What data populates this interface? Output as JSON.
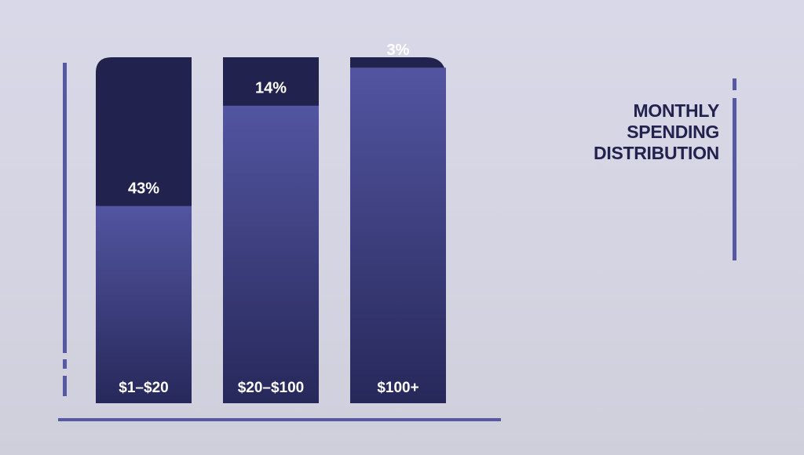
{
  "chart_data": {
    "type": "bar",
    "title": "MONTHLY SPENDING DISTRIBUTION",
    "title_lines": [
      "MONTHLY",
      "SPENDING",
      "DISTRIBUTION"
    ],
    "categories": [
      "$1–$20",
      "$20–$100",
      "$100+"
    ],
    "values": [
      43,
      14,
      3
    ],
    "value_labels": [
      "43%",
      "14%",
      "3%"
    ],
    "unit": "%",
    "stacked_to_total": 100,
    "ylim": [
      0,
      100
    ],
    "grid": false,
    "legend": "none",
    "colors": {
      "background": "#d6d6e4",
      "bar_top": "#22224e",
      "bar_fill_top": "#5255a0",
      "bar_fill_bottom": "#27285a",
      "axis": "#5658a4",
      "label_text": "#ffffff",
      "title_text": "#22224e"
    }
  }
}
